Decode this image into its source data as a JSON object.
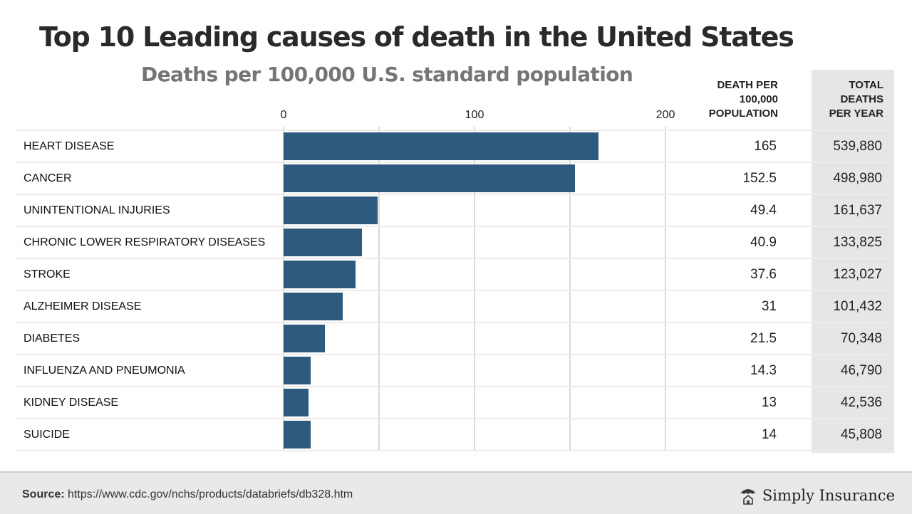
{
  "title": "Top 10 Leading causes of death in the United States",
  "subtitle": "Deaths per 100,000 U.S. standard population",
  "headers": {
    "rate": [
      "DEATH PER",
      "100,000",
      "POPULATION"
    ],
    "total": [
      "TOTAL",
      "DEATHS",
      "PER YEAR"
    ]
  },
  "colors": {
    "bar": "#2e5a7e",
    "total_band": "#e6e6e6"
  },
  "chart_data": {
    "type": "bar",
    "orientation": "horizontal",
    "categories": [
      "HEART DISEASE",
      "CANCER",
      "UNINTENTIONAL INJURIES",
      "CHRONIC LOWER RESPIRATORY DISEASES",
      "STROKE",
      "ALZHEIMER DISEASE",
      "DIABETES",
      "INFLUENZA AND PNEUMONIA",
      "KIDNEY DISEASE",
      "SUICIDE"
    ],
    "values": [
      165,
      152.5,
      49.4,
      40.9,
      37.6,
      31,
      21.5,
      14.3,
      13,
      14
    ],
    "value_labels": [
      "165",
      "152.5",
      "49.4",
      "40.9",
      "37.6",
      "31",
      "21.5",
      "14.3",
      "13",
      "14"
    ],
    "totals": [
      "539,880",
      "498,980",
      "161,637",
      "133,825",
      "123,027",
      "101,432",
      "70,348",
      "46,790",
      "42,536",
      "45,808"
    ],
    "xlim": [
      0,
      200
    ],
    "x_ticks": [
      0,
      100,
      200
    ],
    "x_tick_labels": [
      "0",
      "100",
      "200"
    ],
    "grid": true
  },
  "footer": {
    "source_label": "Source:",
    "source_url": "https://www.cdc.gov/nchs/products/databriefs/db328.htm",
    "brand": "Simply Insurance",
    "brand_icon": "umbrella-house-icon"
  }
}
